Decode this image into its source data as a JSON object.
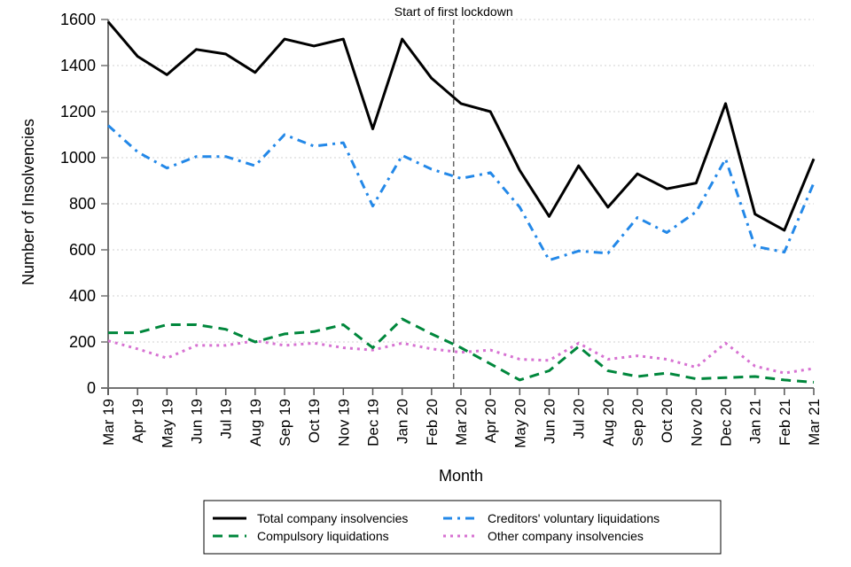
{
  "chart_data": {
    "type": "line",
    "title": "",
    "xlabel": "Month",
    "ylabel": "Number of Insolvencies",
    "ylim": [
      0,
      1600
    ],
    "yticks": [
      0,
      200,
      400,
      600,
      800,
      1000,
      1200,
      1400,
      1600
    ],
    "grid": "horizontal-dotted",
    "categories": [
      "Mar 19",
      "Apr 19",
      "May 19",
      "Jun 19",
      "Jul 19",
      "Aug 19",
      "Sep 19",
      "Oct 19",
      "Nov 19",
      "Dec 19",
      "Jan 20",
      "Feb 20",
      "Mar 20",
      "Apr 20",
      "May 20",
      "Jun 20",
      "Jul 20",
      "Aug 20",
      "Sep 20",
      "Oct 20",
      "Nov 20",
      "Dec 20",
      "Jan 21",
      "Feb 21",
      "Mar 21"
    ],
    "annotation": {
      "text": "Start of first lockdown",
      "x_position_months_after_start": 11.75
    },
    "legend_position": "bottom",
    "series": [
      {
        "name": "Total company insolvencies",
        "color": "#000000",
        "style": "solid",
        "values": [
          1590,
          1440,
          1360,
          1470,
          1450,
          1370,
          1515,
          1485,
          1515,
          1125,
          1515,
          1345,
          1235,
          1200,
          945,
          745,
          965,
          785,
          930,
          865,
          890,
          1235,
          755,
          685,
          995
        ]
      },
      {
        "name": "Creditors' voluntary liquidations",
        "color": "#2388e8",
        "style": "dashdot",
        "values": [
          1140,
          1025,
          955,
          1005,
          1005,
          965,
          1100,
          1050,
          1065,
          790,
          1010,
          950,
          910,
          935,
          785,
          555,
          595,
          585,
          740,
          675,
          765,
          995,
          615,
          590,
          890
        ]
      },
      {
        "name": "Compulsory liquidations",
        "color": "#00873c",
        "style": "dashed",
        "values": [
          240,
          240,
          275,
          275,
          255,
          200,
          235,
          245,
          275,
          175,
          300,
          235,
          175,
          105,
          35,
          75,
          180,
          75,
          50,
          65,
          40,
          45,
          50,
          35,
          25
        ]
      },
      {
        "name": "Other company insolvencies",
        "color": "#d772d2",
        "style": "dotted",
        "values": [
          205,
          170,
          130,
          185,
          185,
          205,
          185,
          195,
          175,
          165,
          195,
          170,
          155,
          165,
          125,
          120,
          195,
          125,
          140,
          125,
          90,
          195,
          95,
          65,
          85
        ]
      }
    ]
  }
}
